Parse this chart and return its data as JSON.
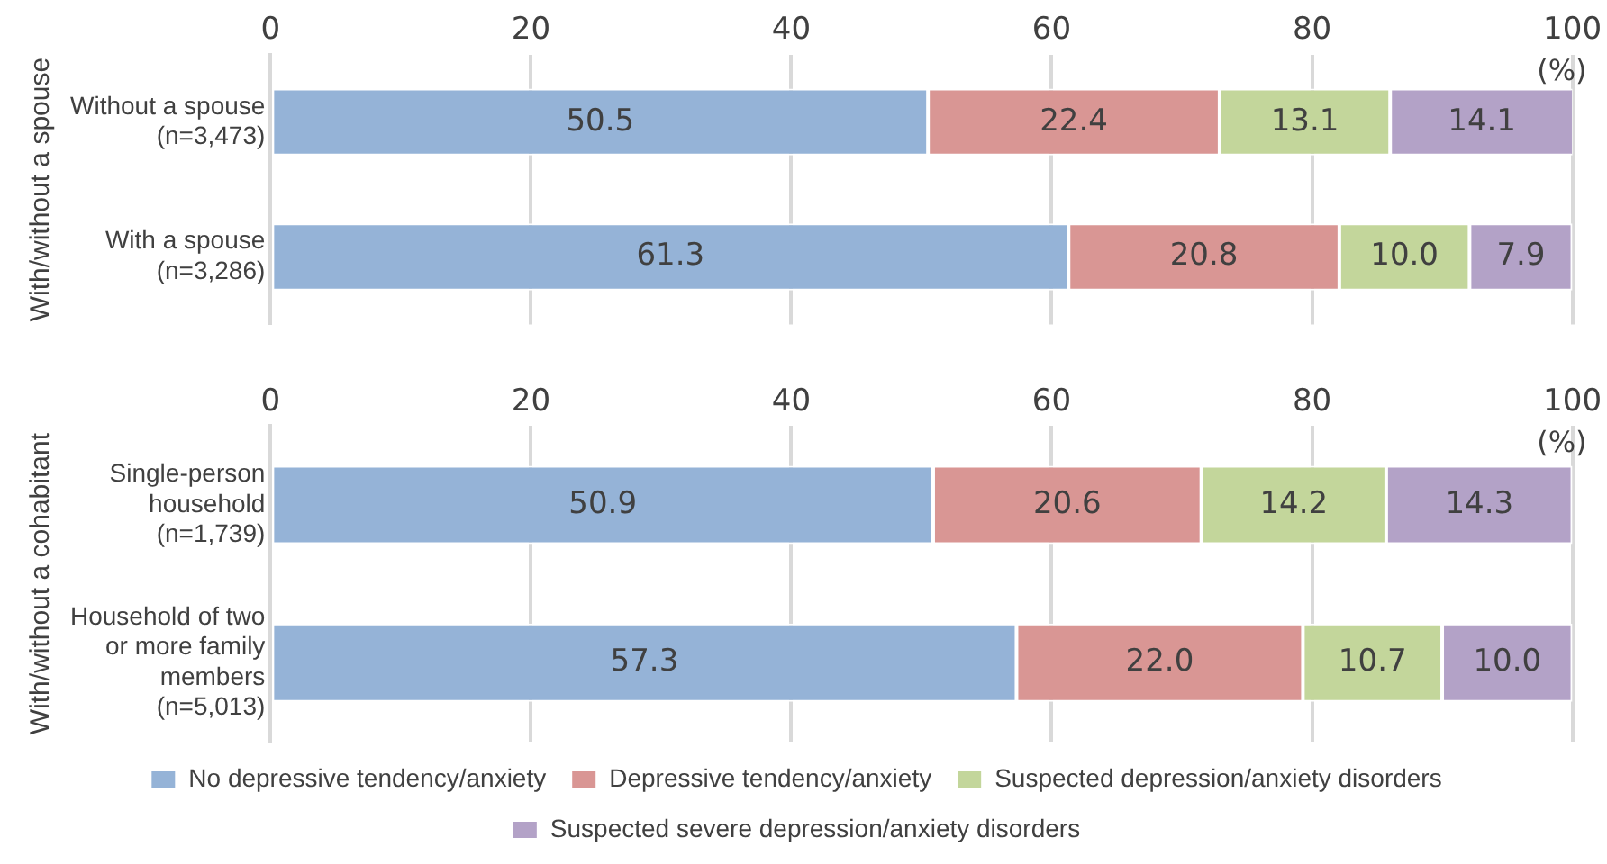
{
  "chart_data": [
    {
      "type": "bar",
      "orientation": "horizontal",
      "stacked": true,
      "ylabel": "With/without a spouse",
      "categories": [
        "Without a spouse (n=3,473)",
        "With a spouse (n=3,286)"
      ],
      "xlim": [
        0,
        100
      ],
      "xticks": [
        0,
        20,
        40,
        60,
        80,
        100
      ],
      "grid": "x",
      "legend": false,
      "annotations": [
        "(%)"
      ],
      "series": [
        {
          "color": "#95b3d7",
          "values": [
            50.5,
            61.3
          ],
          "value_labels": [
            "50.5",
            "61.3"
          ]
        },
        {
          "color": "#d99694",
          "values": [
            22.4,
            20.8
          ],
          "value_labels": [
            "22.4",
            "20.8"
          ]
        },
        {
          "color": "#c3d69b",
          "values": [
            13.1,
            10.0
          ],
          "value_labels": [
            "13.1",
            "10.0"
          ]
        },
        {
          "color": "#b3a2c7",
          "values": [
            14.1,
            7.9
          ],
          "value_labels": [
            "14.1",
            "7.9"
          ]
        }
      ]
    },
    {
      "type": "bar",
      "orientation": "horizontal",
      "stacked": true,
      "ylabel": "With/without a cohabitant",
      "categories": [
        "Single-person household (n=1,739)",
        "Household of two or more family members (n=5,013)"
      ],
      "xlim": [
        0,
        100
      ],
      "xticks": [
        0,
        20,
        40,
        60,
        80,
        100
      ],
      "grid": "x",
      "legend": "bottom",
      "annotations": [
        "(%)"
      ],
      "series": [
        {
          "name": "No depressive tendency/anxiety",
          "color": "#95b3d7",
          "values": [
            50.9,
            57.3
          ],
          "value_labels": [
            "50.9",
            "57.3"
          ]
        },
        {
          "name": "Depressive tendency/anxiety",
          "color": "#d99694",
          "values": [
            20.6,
            22.0
          ],
          "value_labels": [
            "20.6",
            "22.0"
          ]
        },
        {
          "name": "Suspected depression/anxiety disorders",
          "color": "#c3d69b",
          "values": [
            14.2,
            10.7
          ],
          "value_labels": [
            "14.2",
            "10.7"
          ]
        },
        {
          "name": "Suspected severe depression/anxiety disorders",
          "color": "#b3a2c7",
          "values": [
            14.3,
            10.0
          ],
          "value_labels": [
            "14.3",
            "10.0"
          ]
        }
      ]
    }
  ]
}
